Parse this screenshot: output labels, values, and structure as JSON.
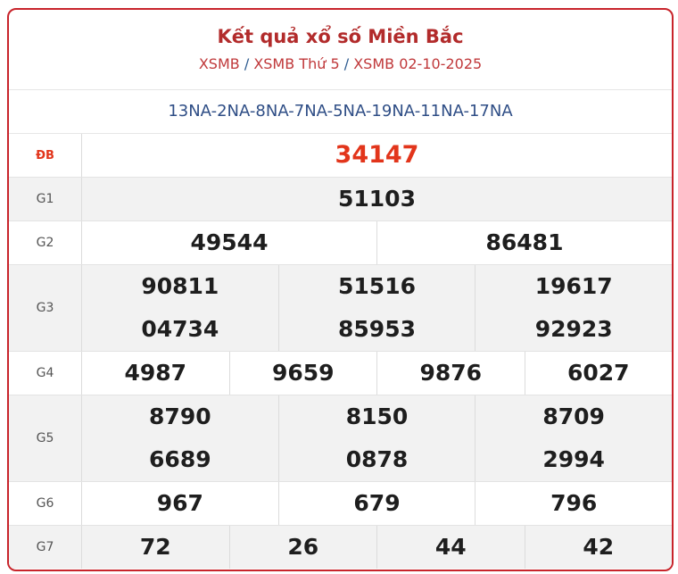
{
  "header": {
    "title": "Kết quả xổ số Miền Bắc",
    "breadcrumb": [
      "XSMB",
      "XSMB Thứ 5",
      "XSMB 02-10-2025"
    ],
    "separator": "/"
  },
  "codes": "13NA-2NA-8NA-7NA-5NA-19NA-11NA-17NA",
  "colors": {
    "border": "#c8242b",
    "special": "#e2351b",
    "codes": "#2f4e86"
  },
  "prizes": [
    {
      "label": "ĐB",
      "numbers": [
        "34147"
      ]
    },
    {
      "label": "G1",
      "numbers": [
        "51103"
      ]
    },
    {
      "label": "G2",
      "numbers": [
        "49544",
        "86481"
      ]
    },
    {
      "label": "G3",
      "numbers": [
        "90811",
        "51516",
        "19617",
        "04734",
        "85953",
        "92923"
      ]
    },
    {
      "label": "G4",
      "numbers": [
        "4987",
        "9659",
        "9876",
        "6027"
      ]
    },
    {
      "label": "G5",
      "numbers": [
        "8790",
        "8150",
        "8709",
        "6689",
        "0878",
        "2994"
      ]
    },
    {
      "label": "G6",
      "numbers": [
        "967",
        "679",
        "796"
      ]
    },
    {
      "label": "G7",
      "numbers": [
        "72",
        "26",
        "44",
        "42"
      ]
    }
  ]
}
